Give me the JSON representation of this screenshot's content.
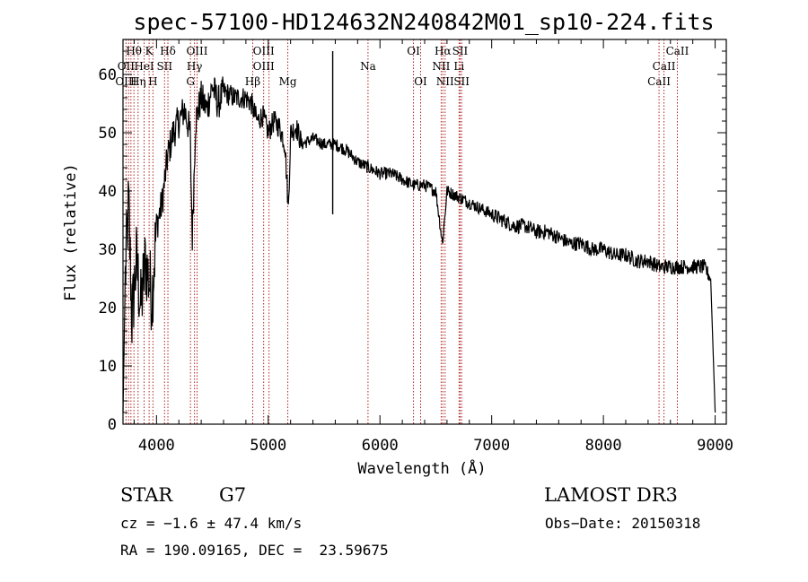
{
  "chart_data": {
    "type": "line",
    "title": "spec-57100-HD124632N240842M01_sp10-224.fits",
    "xlabel": "Wavelength (Å)",
    "ylabel": "Flux (relative)",
    "xlim": [
      3700,
      9100
    ],
    "ylim": [
      0,
      66
    ],
    "xticks": [
      4000,
      5000,
      6000,
      7000,
      8000,
      9000
    ],
    "yticks": [
      0,
      10,
      20,
      30,
      40,
      50,
      60
    ],
    "spectrum_anchors": [
      [
        3700,
        2
      ],
      [
        3720,
        25
      ],
      [
        3750,
        38
      ],
      [
        3780,
        18
      ],
      [
        3820,
        28
      ],
      [
        3860,
        20
      ],
      [
        3900,
        28
      ],
      [
        3960,
        22
      ],
      [
        4000,
        34
      ],
      [
        4050,
        38
      ],
      [
        4100,
        46
      ],
      [
        4150,
        50
      ],
      [
        4200,
        52
      ],
      [
        4250,
        54
      ],
      [
        4300,
        50
      ],
      [
        4320,
        32
      ],
      [
        4350,
        52
      ],
      [
        4400,
        56
      ],
      [
        4450,
        54
      ],
      [
        4500,
        58
      ],
      [
        4550,
        55
      ],
      [
        4600,
        57
      ],
      [
        4700,
        56
      ],
      [
        4800,
        56
      ],
      [
        4850,
        55
      ],
      [
        4900,
        52
      ],
      [
        4950,
        53
      ],
      [
        5000,
        50
      ],
      [
        5050,
        52
      ],
      [
        5100,
        51
      ],
      [
        5150,
        48
      ],
      [
        5180,
        37
      ],
      [
        5200,
        50
      ],
      [
        5250,
        51
      ],
      [
        5300,
        48
      ],
      [
        5400,
        49
      ],
      [
        5500,
        48
      ],
      [
        5600,
        48
      ],
      [
        5700,
        47
      ],
      [
        5800,
        45
      ],
      [
        5900,
        44
      ],
      [
        6000,
        43
      ],
      [
        6100,
        43
      ],
      [
        6200,
        42
      ],
      [
        6300,
        41
      ],
      [
        6400,
        41
      ],
      [
        6500,
        40
      ],
      [
        6560,
        31
      ],
      [
        6600,
        40
      ],
      [
        6700,
        39
      ],
      [
        6800,
        38
      ],
      [
        6900,
        37
      ],
      [
        7000,
        36
      ],
      [
        7100,
        35
      ],
      [
        7200,
        34
      ],
      [
        7300,
        34
      ],
      [
        7400,
        33
      ],
      [
        7500,
        33
      ],
      [
        7600,
        32
      ],
      [
        7700,
        31
      ],
      [
        7800,
        31
      ],
      [
        7900,
        30
      ],
      [
        8000,
        30
      ],
      [
        8100,
        29
      ],
      [
        8200,
        29
      ],
      [
        8300,
        28
      ],
      [
        8400,
        28
      ],
      [
        8500,
        27
      ],
      [
        8600,
        27
      ],
      [
        8700,
        27
      ],
      [
        8800,
        27
      ],
      [
        8900,
        27
      ],
      [
        8960,
        25
      ],
      [
        9000,
        2
      ]
    ],
    "lines": [
      {
        "label": "Hθ",
        "wave": 3798,
        "row": 0
      },
      {
        "label": "K",
        "wave": 3934,
        "row": 0
      },
      {
        "label": "Hδ",
        "wave": 4102,
        "row": 0
      },
      {
        "label": "OIII",
        "wave": 4363,
        "row": 0
      },
      {
        "label": "OIII",
        "wave": 4959,
        "row": 0
      },
      {
        "label": "OI",
        "wave": 6300,
        "row": 0
      },
      {
        "label": "Hα",
        "wave": 6563,
        "row": 0
      },
      {
        "label": "SII",
        "wave": 6717,
        "row": 0
      },
      {
        "label": "CaII",
        "wave": 8662,
        "row": 0
      },
      {
        "label": "OII",
        "wave": 3727,
        "row": 1
      },
      {
        "label": "HeI",
        "wave": 3889,
        "row": 1
      },
      {
        "label": "SII",
        "wave": 4072,
        "row": 1
      },
      {
        "label": "Hγ",
        "wave": 4340,
        "row": 1
      },
      {
        "label": "OIII",
        "wave": 4959,
        "row": 1
      },
      {
        "label": "Na",
        "wave": 5893,
        "row": 1
      },
      {
        "label": "NII",
        "wave": 6548,
        "row": 1
      },
      {
        "label": "Li",
        "wave": 6708,
        "row": 1
      },
      {
        "label": "CaII",
        "wave": 8542,
        "row": 1
      },
      {
        "label": "OIII",
        "wave": 3727,
        "row": 2
      },
      {
        "label": "Hη",
        "wave": 3835,
        "row": 2
      },
      {
        "label": "H",
        "wave": 3968,
        "row": 2
      },
      {
        "label": "G",
        "wave": 4304,
        "row": 2
      },
      {
        "label": "Hβ",
        "wave": 4861,
        "row": 2
      },
      {
        "label": "Mg",
        "wave": 5175,
        "row": 2
      },
      {
        "label": "OI",
        "wave": 6364,
        "row": 2
      },
      {
        "label": "NII",
        "wave": 6583,
        "row": 2
      },
      {
        "label": "SII",
        "wave": 6731,
        "row": 2
      },
      {
        "label": "CaII",
        "wave": 8498,
        "row": 2
      }
    ],
    "marker_waves": [
      3727,
      3750,
      3771,
      3798,
      3835,
      3889,
      3934,
      3968,
      4072,
      4102,
      4304,
      4340,
      4363,
      4861,
      4959,
      5007,
      5175,
      5893,
      6300,
      6364,
      6548,
      6563,
      6583,
      6708,
      6717,
      6731,
      8498,
      8542,
      8662
    ],
    "marker_color": "#b22222",
    "line_color": "#000000"
  },
  "info": {
    "object_class": "STAR",
    "subclass": "G7",
    "survey": "LAMOST DR3",
    "cz": "cz = −1.6 ± 47.4 km/s",
    "obs_date": "Obs−Date: 20150318",
    "coords": "RA = 190.09165, DEC =  23.59675"
  }
}
